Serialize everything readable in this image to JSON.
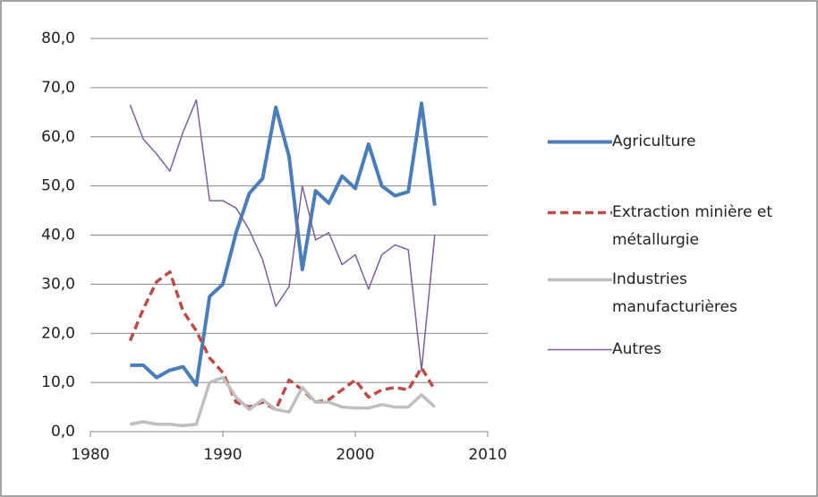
{
  "chart_data": {
    "type": "line",
    "x": [
      1983,
      1984,
      1985,
      1986,
      1987,
      1988,
      1989,
      1990,
      1991,
      1992,
      1993,
      1994,
      1995,
      1996,
      1997,
      1998,
      1999,
      2000,
      2001,
      2002,
      2003,
      2004,
      2005,
      2006
    ],
    "series": [
      {
        "name": "Agriculture",
        "color": "#4a7ebb",
        "line_width": 4,
        "line_style": "solid",
        "values": [
          13.5,
          13.5,
          11,
          12.5,
          13.2,
          9.5,
          27.5,
          30,
          40.5,
          48.5,
          51.5,
          66,
          56,
          33,
          49,
          46.5,
          52,
          49.5,
          58.5,
          50,
          48,
          48.8,
          66.8,
          46
        ]
      },
      {
        "name": "Extraction minière et métallurgie",
        "color": "#be4b48",
        "line_width": 3.5,
        "line_style": "dashed",
        "values": [
          18.5,
          25,
          30.5,
          32.5,
          24.5,
          20.5,
          15,
          12,
          6,
          5,
          6,
          4.5,
          10.5,
          8.5,
          6,
          6.5,
          8.5,
          10.5,
          7,
          8.5,
          9,
          8.5,
          13,
          8.5
        ]
      },
      {
        "name": "Industries manufacturières",
        "color": "#bfbfbf",
        "line_width": 3.5,
        "line_style": "solid",
        "values": [
          1.5,
          2,
          1.5,
          1.5,
          1.2,
          1.5,
          10,
          11,
          7,
          4.5,
          6.5,
          4.5,
          4,
          9,
          6,
          6,
          5,
          4.8,
          4.8,
          5.5,
          5,
          5,
          7.5,
          5
        ]
      },
      {
        "name": "Autres",
        "color": "#7d60a0",
        "line_width": 1.5,
        "line_style": "solid",
        "values": [
          66.5,
          59.5,
          56.5,
          53,
          61,
          67.5,
          47,
          47,
          45.5,
          41,
          35,
          25.5,
          29.5,
          50,
          39,
          40.5,
          34,
          36,
          29,
          36,
          38,
          37,
          12.5,
          40
        ]
      }
    ],
    "xlim": [
      1980,
      2010
    ],
    "xticks": [
      1980,
      1990,
      2000,
      2010
    ],
    "ylim": [
      0,
      80
    ],
    "yticks": [
      {
        "value": 0,
        "label": "0,0"
      },
      {
        "value": 10,
        "label": "10,0"
      },
      {
        "value": 20,
        "label": "20,0"
      },
      {
        "value": 30,
        "label": "30,0"
      },
      {
        "value": 40,
        "label": "40,0"
      },
      {
        "value": 50,
        "label": "50,0"
      },
      {
        "value": 60,
        "label": "60,0"
      },
      {
        "value": 70,
        "label": "70,0"
      },
      {
        "value": 80,
        "label": "80,0"
      }
    ],
    "grid": true,
    "legend": "right"
  }
}
